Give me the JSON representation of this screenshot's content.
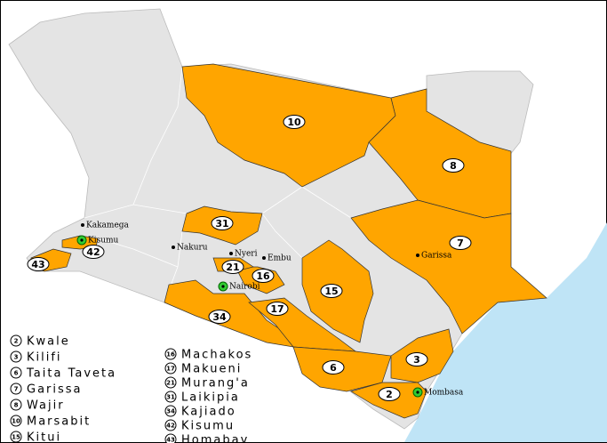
{
  "legend": [
    {
      "number": "2",
      "name": "Kwale"
    },
    {
      "number": "3",
      "name": "Kilifi"
    },
    {
      "number": "6",
      "name": "Taita Taveta"
    },
    {
      "number": "7",
      "name": "Garissa"
    },
    {
      "number": "8",
      "name": "Wajir"
    },
    {
      "number": "10",
      "name": "Marsabit"
    },
    {
      "number": "15",
      "name": "Kitui"
    },
    {
      "number": "16",
      "name": "Machakos"
    },
    {
      "number": "17",
      "name": "Makueni"
    },
    {
      "number": "21",
      "name": "Murang'a"
    },
    {
      "number": "31",
      "name": "Laikipia"
    },
    {
      "number": "34",
      "name": "Kajiado"
    },
    {
      "number": "42",
      "name": "Kisumu"
    },
    {
      "number": "43",
      "name": "Homabay"
    }
  ],
  "county_labels": [
    "10",
    "8",
    "31",
    "7",
    "42",
    "43",
    "21",
    "16",
    "15",
    "17",
    "34",
    "6",
    "3",
    "2"
  ],
  "cities": [
    "Kakamega",
    "Kisumu",
    "Nakuru",
    "Nyeri",
    "Embu",
    "Garissa",
    "Nairobi",
    "Mombasa"
  ]
}
